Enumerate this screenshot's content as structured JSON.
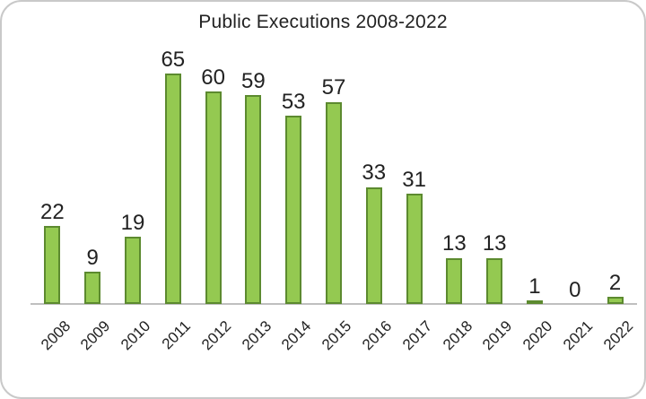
{
  "chart_data": {
    "type": "bar",
    "title": "Public Executions 2008-2022",
    "categories": [
      "2008",
      "2009",
      "2010",
      "2011",
      "2012",
      "2013",
      "2014",
      "2015",
      "2016",
      "2017",
      "2018",
      "2019",
      "2020",
      "2021",
      "2022"
    ],
    "values": [
      22,
      9,
      19,
      65,
      60,
      59,
      53,
      57,
      33,
      31,
      13,
      13,
      1,
      0,
      2
    ],
    "xlabel": "",
    "ylabel": "",
    "ylim": [
      0,
      65
    ],
    "grid": false,
    "legend": false,
    "data_labels": true,
    "x_tick_rotation_deg": -45,
    "colors": {
      "bar_fill": "#94C951",
      "bar_border": "#5C8A2F",
      "axis_line": "#BFBFBF",
      "text": "#222222",
      "card_border": "#C9C9C9",
      "background": "#FFFFFF"
    }
  }
}
